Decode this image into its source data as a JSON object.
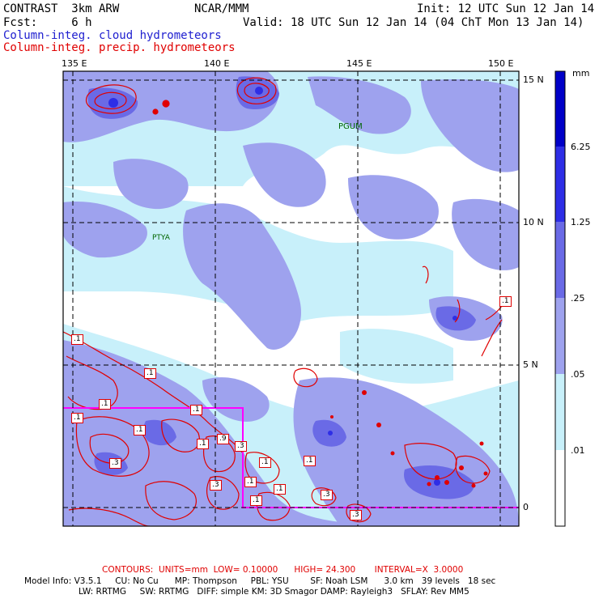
{
  "header": {
    "model": "CONTRAST  3km ARW",
    "center": "NCAR/MMM",
    "init": "Init: 12 UTC Sun 12 Jan 14",
    "fcst": "Fcst:     6 h",
    "valid": "Valid: 18 UTC Sun 12 Jan 14 (04 ChT Mon 13 Jan 14)",
    "field_shaded": "Column-integ. cloud hydrometeors",
    "field_contour": "Column-integ. precip. hydrometeors"
  },
  "map": {
    "lon_labels": [
      "135 E",
      "140 E",
      "145 E",
      "150 E"
    ],
    "lat_labels": [
      "15 N",
      "10 N",
      "5 N",
      "0"
    ],
    "station_labels": [
      "PGUM",
      "PTYA"
    ],
    "contour_labels": [
      ".1",
      ".1",
      ".1",
      ".1",
      ".1",
      ".1",
      ".1",
      ".9",
      ".3",
      ".1",
      ".1",
      ".3",
      ".3",
      ".1",
      ".1",
      ".1",
      ".3",
      ".3",
      ".1"
    ]
  },
  "colorbar": {
    "unit": "mm",
    "levels": [
      "6.25",
      "1.25",
      ".25",
      ".05",
      ".01"
    ],
    "colors": [
      "#0000c8",
      "#2e2ee6",
      "#6a6ae6",
      "#9ea2ee",
      "#c8f0fa",
      "#ffffff"
    ]
  },
  "footer": {
    "contours": "CONTOURS:  UNITS=mm  LOW= 0.10000      HIGH= 24.300       INTERVAL=X  3.0000",
    "model_info_1": "Model Info: V3.5.1     CU: No Cu      MP: Thompson     PBL: YSU        SF: Noah LSM      3.0 km   39 levels   18 sec",
    "model_info_2": "LW: RRTMG     SW: RRTMG   DIFF: simple KM: 3D Smagor DAMP: Rayleigh3   SFLAY: Rev MM5"
  }
}
